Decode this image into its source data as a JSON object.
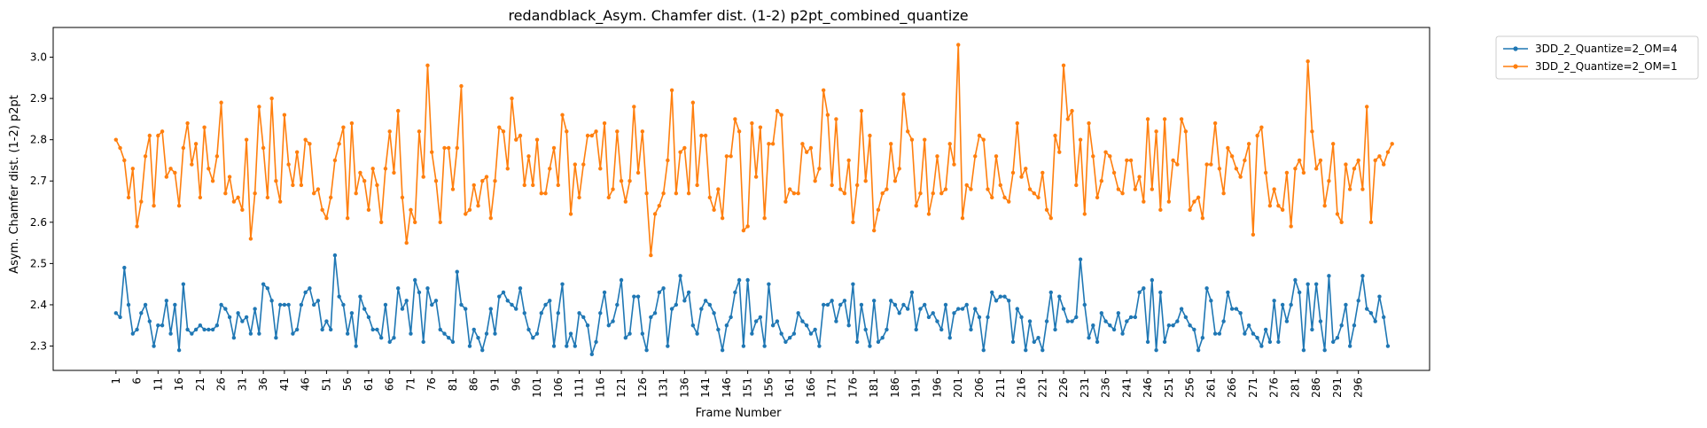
{
  "chart_data": {
    "type": "line",
    "title": "redandblack_Asym. Chamfer dist. (1-2) p2pt_combined_quantize",
    "xlabel": "Frame Number",
    "ylabel": "Asym. Chamfer dist. (1-2) p2pt",
    "xlim": [
      -13.9,
      312.9
    ],
    "ylim": [
      2.241,
      3.072
    ],
    "yticks": [
      2.3,
      2.4,
      2.5,
      2.6,
      2.7,
      2.8,
      2.9,
      3.0
    ],
    "ytick_labels": [
      "2.3",
      "2.4",
      "2.5",
      "2.6",
      "2.7",
      "2.8",
      "2.9",
      "3.0"
    ],
    "xticks": [
      1,
      6,
      11,
      16,
      21,
      26,
      31,
      36,
      41,
      46,
      51,
      56,
      61,
      66,
      71,
      76,
      81,
      86,
      91,
      96,
      101,
      106,
      111,
      116,
      121,
      126,
      131,
      136,
      141,
      146,
      151,
      156,
      161,
      166,
      171,
      176,
      181,
      186,
      191,
      196,
      201,
      206,
      211,
      216,
      221,
      226,
      231,
      236,
      241,
      246,
      251,
      256,
      261,
      266,
      271,
      276,
      281,
      286,
      291,
      296
    ],
    "xtick_labels": [
      "1",
      "6",
      "11",
      "16",
      "21",
      "26",
      "31",
      "36",
      "41",
      "46",
      "51",
      "56",
      "61",
      "66",
      "71",
      "76",
      "81",
      "86",
      "91",
      "96",
      "101",
      "106",
      "111",
      "116",
      "121",
      "126",
      "131",
      "136",
      "141",
      "146",
      "151",
      "156",
      "161",
      "166",
      "171",
      "176",
      "181",
      "186",
      "191",
      "196",
      "201",
      "206",
      "211",
      "216",
      "221",
      "226",
      "231",
      "236",
      "241",
      "246",
      "251",
      "256",
      "261",
      "266",
      "271",
      "276",
      "281",
      "286",
      "291",
      "296"
    ],
    "x_start": 1,
    "legend_position": "outside-top-right",
    "grid": false,
    "series": [
      {
        "name": "3DD_2_Quantize=2_OM=4",
        "color": "#1f77b4",
        "values": [
          2.38,
          2.37,
          2.49,
          2.4,
          2.33,
          2.34,
          2.38,
          2.4,
          2.36,
          2.3,
          2.35,
          2.35,
          2.41,
          2.33,
          2.4,
          2.29,
          2.45,
          2.34,
          2.33,
          2.34,
          2.35,
          2.34,
          2.34,
          2.34,
          2.35,
          2.4,
          2.39,
          2.37,
          2.32,
          2.38,
          2.36,
          2.37,
          2.33,
          2.39,
          2.33,
          2.45,
          2.44,
          2.41,
          2.32,
          2.4,
          2.4,
          2.4,
          2.33,
          2.34,
          2.4,
          2.43,
          2.44,
          2.4,
          2.41,
          2.34,
          2.36,
          2.34,
          2.52,
          2.42,
          2.4,
          2.33,
          2.38,
          2.3,
          2.42,
          2.39,
          2.37,
          2.34,
          2.34,
          2.32,
          2.4,
          2.31,
          2.32,
          2.44,
          2.39,
          2.41,
          2.33,
          2.46,
          2.43,
          2.31,
          2.44,
          2.4,
          2.41,
          2.34,
          2.33,
          2.32,
          2.31,
          2.48,
          2.4,
          2.39,
          2.3,
          2.34,
          2.32,
          2.29,
          2.33,
          2.39,
          2.33,
          2.42,
          2.43,
          2.41,
          2.4,
          2.39,
          2.44,
          2.38,
          2.34,
          2.32,
          2.33,
          2.38,
          2.4,
          2.41,
          2.3,
          2.38,
          2.45,
          2.3,
          2.33,
          2.3,
          2.38,
          2.37,
          2.35,
          2.28,
          2.31,
          2.38,
          2.43,
          2.35,
          2.36,
          2.4,
          2.46,
          2.32,
          2.33,
          2.42,
          2.42,
          2.33,
          2.29,
          2.37,
          2.38,
          2.43,
          2.44,
          2.3,
          2.39,
          2.4,
          2.47,
          2.41,
          2.43,
          2.35,
          2.33,
          2.39,
          2.41,
          2.4,
          2.38,
          2.34,
          2.29,
          2.35,
          2.37,
          2.43,
          2.46,
          2.3,
          2.46,
          2.33,
          2.36,
          2.37,
          2.3,
          2.45,
          2.35,
          2.36,
          2.33,
          2.31,
          2.32,
          2.33,
          2.38,
          2.36,
          2.35,
          2.33,
          2.34,
          2.3,
          2.4,
          2.4,
          2.41,
          2.36,
          2.4,
          2.41,
          2.35,
          2.45,
          2.31,
          2.4,
          2.34,
          2.3,
          2.41,
          2.31,
          2.32,
          2.34,
          2.41,
          2.4,
          2.38,
          2.4,
          2.39,
          2.43,
          2.34,
          2.39,
          2.4,
          2.37,
          2.38,
          2.36,
          2.34,
          2.4,
          2.32,
          2.38,
          2.39,
          2.39,
          2.4,
          2.34,
          2.39,
          2.37,
          2.29,
          2.37,
          2.43,
          2.41,
          2.42,
          2.42,
          2.41,
          2.31,
          2.39,
          2.37,
          2.29,
          2.36,
          2.31,
          2.32,
          2.29,
          2.36,
          2.43,
          2.34,
          2.42,
          2.39,
          2.36,
          2.36,
          2.37,
          2.51,
          2.4,
          2.32,
          2.35,
          2.31,
          2.38,
          2.36,
          2.35,
          2.34,
          2.38,
          2.33,
          2.36,
          2.37,
          2.37,
          2.43,
          2.44,
          2.31,
          2.46,
          2.29,
          2.43,
          2.31,
          2.35,
          2.35,
          2.36,
          2.39,
          2.37,
          2.35,
          2.34,
          2.29,
          2.32,
          2.44,
          2.41,
          2.33,
          2.33,
          2.36,
          2.43,
          2.39,
          2.39,
          2.38,
          2.33,
          2.35,
          2.33,
          2.32,
          2.3,
          2.34,
          2.31,
          2.41,
          2.31,
          2.4,
          2.36,
          2.4,
          2.46,
          2.43,
          2.29,
          2.45,
          2.34,
          2.45,
          2.36,
          2.29,
          2.47,
          2.31,
          2.32,
          2.35,
          2.4,
          2.3,
          2.35,
          2.41,
          2.47,
          2.39,
          2.38,
          2.36,
          2.42,
          2.37,
          2.3
        ]
      },
      {
        "name": "3DD_2_Quantize=2_OM=1",
        "color": "#ff7f0e",
        "values": [
          2.8,
          2.78,
          2.75,
          2.66,
          2.73,
          2.59,
          2.65,
          2.76,
          2.81,
          2.64,
          2.81,
          2.82,
          2.71,
          2.73,
          2.72,
          2.64,
          2.78,
          2.84,
          2.74,
          2.79,
          2.66,
          2.83,
          2.73,
          2.7,
          2.76,
          2.89,
          2.67,
          2.71,
          2.65,
          2.66,
          2.63,
          2.8,
          2.56,
          2.67,
          2.88,
          2.78,
          2.66,
          2.9,
          2.7,
          2.65,
          2.86,
          2.74,
          2.69,
          2.77,
          2.69,
          2.8,
          2.79,
          2.67,
          2.68,
          2.63,
          2.61,
          2.66,
          2.75,
          2.79,
          2.83,
          2.61,
          2.84,
          2.67,
          2.72,
          2.7,
          2.63,
          2.73,
          2.69,
          2.6,
          2.73,
          2.82,
          2.72,
          2.87,
          2.66,
          2.55,
          2.63,
          2.6,
          2.82,
          2.71,
          2.98,
          2.77,
          2.7,
          2.6,
          2.78,
          2.78,
          2.68,
          2.78,
          2.93,
          2.62,
          2.63,
          2.69,
          2.64,
          2.7,
          2.71,
          2.61,
          2.7,
          2.83,
          2.82,
          2.73,
          2.9,
          2.8,
          2.81,
          2.69,
          2.76,
          2.69,
          2.8,
          2.67,
          2.67,
          2.73,
          2.78,
          2.69,
          2.86,
          2.82,
          2.62,
          2.74,
          2.66,
          2.74,
          2.81,
          2.81,
          2.82,
          2.73,
          2.84,
          2.66,
          2.68,
          2.82,
          2.7,
          2.65,
          2.7,
          2.88,
          2.72,
          2.82,
          2.67,
          2.52,
          2.62,
          2.64,
          2.67,
          2.75,
          2.92,
          2.67,
          2.77,
          2.78,
          2.67,
          2.89,
          2.69,
          2.81,
          2.81,
          2.66,
          2.63,
          2.68,
          2.61,
          2.76,
          2.76,
          2.85,
          2.82,
          2.58,
          2.59,
          2.84,
          2.71,
          2.83,
          2.61,
          2.79,
          2.79,
          2.87,
          2.86,
          2.65,
          2.68,
          2.67,
          2.67,
          2.79,
          2.77,
          2.78,
          2.7,
          2.73,
          2.92,
          2.86,
          2.69,
          2.85,
          2.68,
          2.67,
          2.75,
          2.6,
          2.69,
          2.87,
          2.7,
          2.81,
          2.58,
          2.63,
          2.67,
          2.68,
          2.79,
          2.7,
          2.73,
          2.91,
          2.82,
          2.8,
          2.64,
          2.67,
          2.8,
          2.62,
          2.67,
          2.76,
          2.67,
          2.68,
          2.79,
          2.74,
          3.03,
          2.61,
          2.69,
          2.68,
          2.76,
          2.81,
          2.8,
          2.68,
          2.66,
          2.76,
          2.69,
          2.66,
          2.65,
          2.72,
          2.84,
          2.71,
          2.73,
          2.68,
          2.67,
          2.66,
          2.72,
          2.63,
          2.61,
          2.81,
          2.77,
          2.98,
          2.85,
          2.87,
          2.69,
          2.8,
          2.62,
          2.84,
          2.76,
          2.66,
          2.7,
          2.77,
          2.76,
          2.72,
          2.68,
          2.67,
          2.75,
          2.75,
          2.68,
          2.71,
          2.65,
          2.85,
          2.68,
          2.82,
          2.63,
          2.85,
          2.65,
          2.75,
          2.74,
          2.85,
          2.82,
          2.63,
          2.65,
          2.66,
          2.61,
          2.74,
          2.74,
          2.84,
          2.73,
          2.67,
          2.78,
          2.76,
          2.73,
          2.71,
          2.75,
          2.79,
          2.57,
          2.81,
          2.83,
          2.72,
          2.64,
          2.68,
          2.64,
          2.63,
          2.72,
          2.59,
          2.73,
          2.75,
          2.72,
          2.99,
          2.82,
          2.73,
          2.75,
          2.64,
          2.7,
          2.79,
          2.62,
          2.6,
          2.74,
          2.68,
          2.73,
          2.75,
          2.68,
          2.88,
          2.6,
          2.75,
          2.76,
          2.74,
          2.77,
          2.79
        ]
      }
    ]
  }
}
